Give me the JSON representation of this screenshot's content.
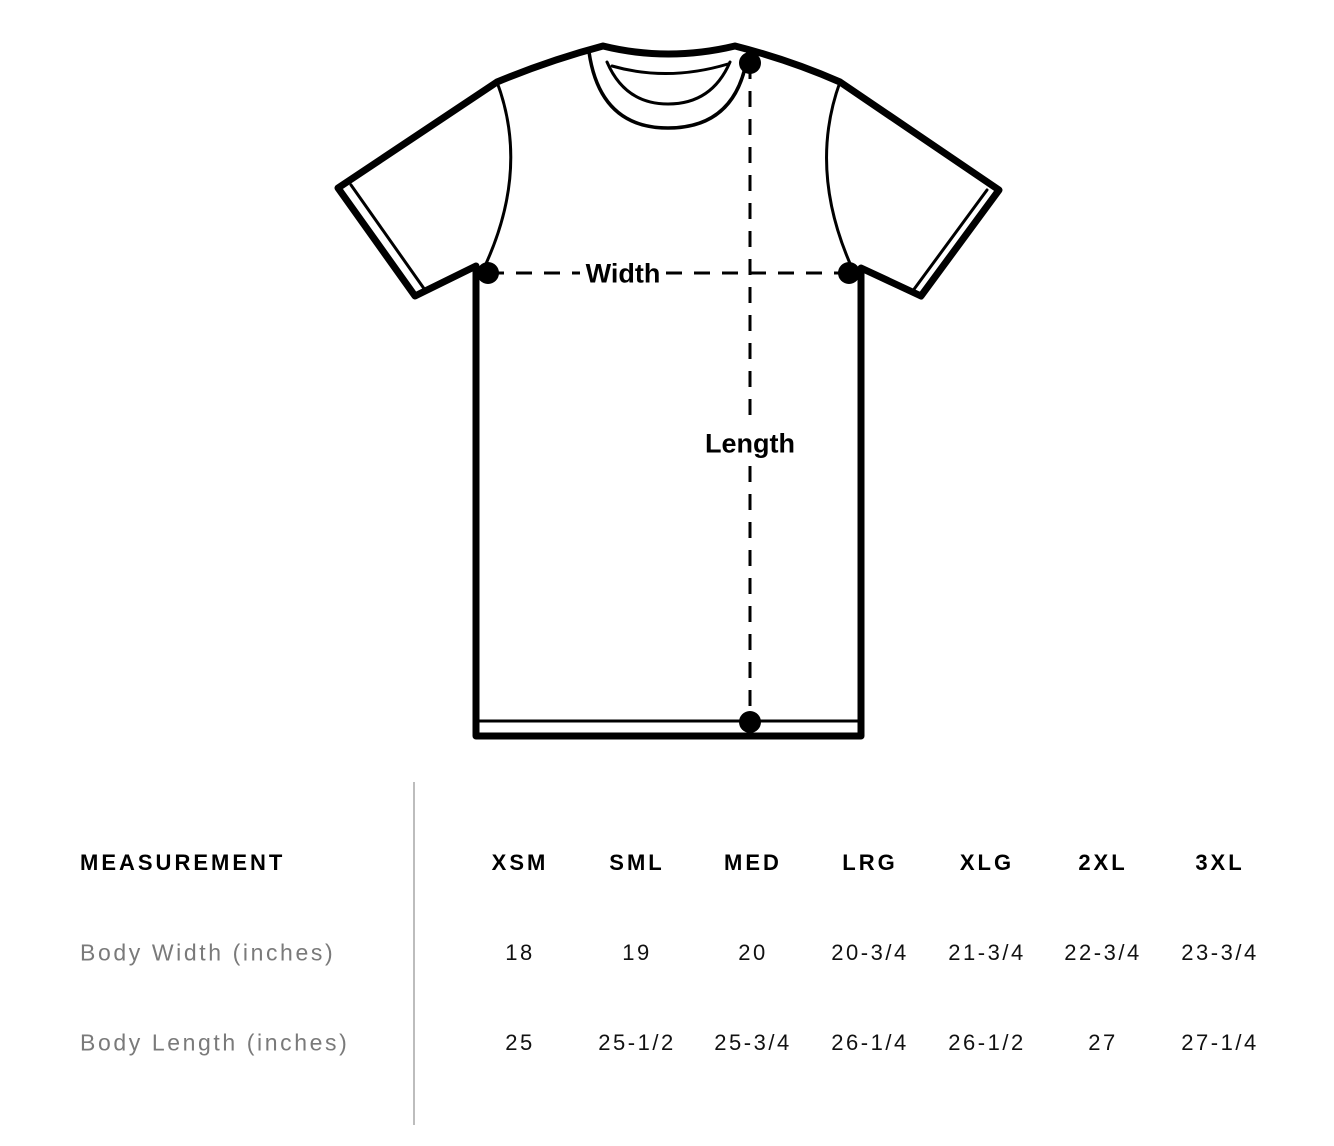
{
  "diagram": {
    "width_label": "Width",
    "length_label": "Length",
    "line_color": "#000000"
  },
  "table": {
    "header_label": "MEASUREMENT",
    "sizes": [
      "XSM",
      "SML",
      "MED",
      "LRG",
      "XLG",
      "2XL",
      "3XL"
    ],
    "rows": [
      {
        "label": "Body Width (inches)",
        "values": [
          "18",
          "19",
          "20",
          "20-3/4",
          "21-3/4",
          "22-3/4",
          "23-3/4"
        ]
      },
      {
        "label": "Body Length (inches)",
        "values": [
          "25",
          "25-1/2",
          "25-3/4",
          "26-1/4",
          "26-1/2",
          "27",
          "27-1/4"
        ]
      }
    ]
  }
}
